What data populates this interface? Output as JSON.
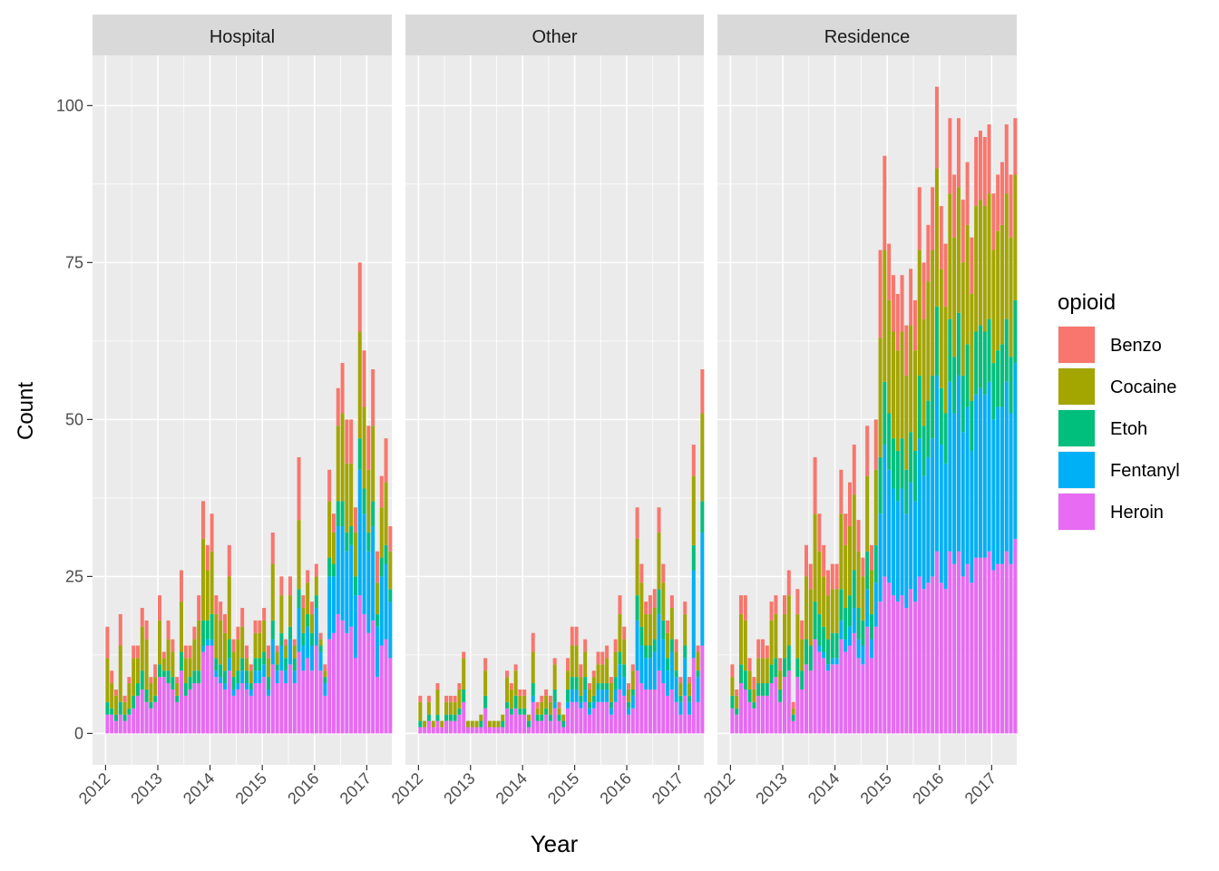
{
  "chart_data": {
    "type": "bar",
    "stacked": true,
    "faceted": true,
    "xlabel": "Year",
    "ylabel": "Count",
    "ylim": [
      -5,
      108
    ],
    "yticks": [
      0,
      25,
      50,
      75,
      100
    ],
    "xlim": [
      2011.75,
      2017.48
    ],
    "xticks": [
      2012,
      2013,
      2014,
      2015,
      2016,
      2017
    ],
    "xtick_labels": [
      "2012",
      "2013",
      "2014",
      "2015",
      "2016",
      "2017"
    ],
    "grid": true,
    "legend": {
      "title": "opioid",
      "position": "right"
    },
    "bin_start": "2012-01",
    "bin_width_months": 1,
    "series_order": [
      "Heroin",
      "Fentanyl",
      "Etoh",
      "Cocaine",
      "Benzo"
    ],
    "series": [
      {
        "name": "Benzo",
        "color": "#F8766D"
      },
      {
        "name": "Cocaine",
        "color": "#A3A500"
      },
      {
        "name": "Etoh",
        "color": "#00BF7D"
      },
      {
        "name": "Fentanyl",
        "color": "#00B0F6"
      },
      {
        "name": "Heroin",
        "color": "#E76BF3"
      }
    ],
    "panels": [
      {
        "name": "Hospital",
        "totals": [
          17,
          10,
          7,
          19,
          6,
          9,
          14,
          14,
          20,
          18,
          9,
          11,
          22,
          13,
          18,
          15,
          9,
          26,
          14,
          14,
          17,
          22,
          37,
          30,
          35,
          22,
          21,
          19,
          30,
          15,
          17,
          20,
          14,
          11,
          18,
          18,
          20,
          14,
          32,
          14,
          25,
          15,
          25,
          15,
          44,
          22,
          26,
          21,
          27,
          16,
          11,
          42,
          35,
          55,
          59,
          50,
          50,
          36,
          75,
          61,
          49,
          58,
          29,
          41,
          47,
          33
        ],
        "segments": {
          "Heroin": [
            3,
            3,
            2,
            3,
            2,
            3,
            4,
            6,
            7,
            5,
            4,
            5,
            9,
            9,
            8,
            7,
            5,
            10,
            6,
            7,
            8,
            8,
            13,
            14,
            14,
            9,
            8,
            7,
            10,
            6,
            7,
            8,
            7,
            6,
            8,
            8,
            9,
            6,
            11,
            8,
            10,
            8,
            11,
            8,
            13,
            10,
            12,
            10,
            14,
            10,
            6,
            15,
            16,
            19,
            18,
            16,
            17,
            12,
            22,
            19,
            16,
            18,
            9,
            14,
            15,
            12
          ],
          "Fentanyl": [
            0,
            0,
            0,
            0,
            0,
            0,
            0,
            0,
            0,
            0,
            0,
            0,
            0,
            0,
            0,
            0,
            0,
            0,
            0,
            0,
            0,
            0,
            1,
            1,
            1,
            1,
            1,
            1,
            2,
            1,
            1,
            2,
            1,
            1,
            2,
            2,
            2,
            1,
            4,
            2,
            4,
            2,
            4,
            2,
            7,
            4,
            5,
            4,
            6,
            3,
            2,
            10,
            9,
            14,
            15,
            13,
            13,
            10,
            20,
            16,
            13,
            15,
            8,
            11,
            12,
            9
          ],
          "Etoh": [
            2,
            1,
            1,
            2,
            1,
            1,
            2,
            2,
            3,
            2,
            1,
            1,
            2,
            1,
            2,
            2,
            1,
            3,
            2,
            2,
            2,
            2,
            4,
            3,
            4,
            2,
            2,
            2,
            3,
            2,
            2,
            2,
            2,
            1,
            2,
            2,
            2,
            2,
            3,
            1,
            2,
            2,
            2,
            2,
            3,
            2,
            2,
            2,
            2,
            1,
            1,
            3,
            2,
            4,
            4,
            3,
            3,
            3,
            5,
            4,
            3,
            4,
            2,
            3,
            3,
            2
          ],
          "Cocaine": [
            7,
            4,
            3,
            9,
            2,
            4,
            6,
            4,
            7,
            8,
            3,
            3,
            7,
            2,
            5,
            4,
            2,
            8,
            4,
            3,
            5,
            8,
            13,
            8,
            10,
            7,
            7,
            6,
            10,
            4,
            5,
            5,
            2,
            2,
            4,
            4,
            5,
            3,
            9,
            2,
            6,
            2,
            5,
            2,
            11,
            4,
            5,
            3,
            3,
            1,
            1,
            9,
            5,
            12,
            14,
            11,
            10,
            7,
            17,
            13,
            10,
            12,
            5,
            8,
            10,
            6
          ],
          "Benzo": [
            5,
            2,
            1,
            5,
            1,
            1,
            2,
            2,
            3,
            3,
            1,
            2,
            4,
            1,
            3,
            2,
            1,
            5,
            2,
            2,
            2,
            4,
            6,
            4,
            6,
            3,
            3,
            3,
            5,
            2,
            2,
            3,
            2,
            1,
            2,
            2,
            2,
            2,
            5,
            1,
            3,
            1,
            3,
            1,
            10,
            2,
            2,
            2,
            2,
            1,
            1,
            5,
            3,
            6,
            8,
            7,
            7,
            4,
            11,
            9,
            7,
            9,
            5,
            5,
            7,
            4
          ]
        }
      },
      {
        "name": "Other",
        "totals": [
          6,
          2,
          6,
          2,
          8,
          2,
          6,
          6,
          6,
          8,
          13,
          2,
          2,
          2,
          3,
          12,
          2,
          2,
          2,
          3,
          10,
          8,
          11,
          7,
          7,
          3,
          16,
          5,
          6,
          7,
          6,
          12,
          5,
          3,
          12,
          17,
          17,
          11,
          15,
          8,
          10,
          13,
          13,
          14,
          9,
          15,
          22,
          17,
          8,
          11,
          36,
          27,
          21,
          22,
          23,
          36,
          27,
          18,
          22,
          15,
          9,
          21,
          9,
          46,
          14,
          58
        ],
        "segments": {
          "Heroin": [
            1,
            1,
            2,
            1,
            2,
            1,
            2,
            2,
            2,
            3,
            5,
            1,
            1,
            1,
            1,
            4,
            1,
            1,
            1,
            1,
            4,
            3,
            4,
            3,
            3,
            1,
            5,
            2,
            2,
            3,
            2,
            4,
            2,
            1,
            4,
            5,
            5,
            4,
            5,
            3,
            4,
            5,
            5,
            5,
            3,
            5,
            7,
            6,
            3,
            4,
            10,
            8,
            7,
            7,
            7,
            10,
            8,
            6,
            7,
            5,
            3,
            6,
            3,
            12,
            5,
            14
          ],
          "Fentanyl": [
            0,
            0,
            0,
            0,
            0,
            0,
            0,
            0,
            0,
            0,
            0,
            0,
            0,
            0,
            0,
            0,
            0,
            0,
            0,
            0,
            0,
            0,
            0,
            0,
            0,
            0,
            1,
            0,
            0,
            0,
            0,
            1,
            0,
            0,
            1,
            2,
            2,
            1,
            2,
            1,
            1,
            2,
            2,
            2,
            1,
            2,
            4,
            3,
            1,
            2,
            8,
            6,
            5,
            5,
            6,
            9,
            7,
            4,
            6,
            4,
            2,
            6,
            2,
            14,
            4,
            18
          ],
          "Etoh": [
            1,
            0,
            1,
            0,
            1,
            0,
            1,
            1,
            1,
            1,
            2,
            0,
            0,
            0,
            1,
            2,
            0,
            0,
            0,
            1,
            1,
            1,
            2,
            1,
            1,
            1,
            2,
            1,
            1,
            1,
            1,
            2,
            1,
            1,
            2,
            2,
            2,
            1,
            2,
            1,
            1,
            1,
            1,
            1,
            1,
            2,
            2,
            2,
            1,
            1,
            4,
            3,
            2,
            2,
            2,
            4,
            3,
            2,
            2,
            1,
            1,
            2,
            1,
            4,
            1,
            5
          ],
          "Cocaine": [
            3,
            1,
            2,
            1,
            4,
            1,
            2,
            2,
            2,
            3,
            5,
            1,
            1,
            1,
            1,
            4,
            1,
            1,
            1,
            1,
            4,
            3,
            4,
            2,
            2,
            1,
            5,
            1,
            2,
            2,
            2,
            4,
            1,
            1,
            3,
            5,
            5,
            3,
            4,
            2,
            3,
            3,
            3,
            4,
            3,
            4,
            6,
            4,
            2,
            3,
            9,
            7,
            5,
            5,
            5,
            9,
            6,
            4,
            5,
            3,
            2,
            5,
            2,
            11,
            3,
            14
          ],
          "Benzo": [
            1,
            0,
            1,
            0,
            1,
            0,
            1,
            1,
            1,
            1,
            1,
            0,
            0,
            0,
            0,
            2,
            0,
            0,
            0,
            0,
            1,
            1,
            1,
            1,
            1,
            0,
            3,
            1,
            1,
            1,
            1,
            1,
            1,
            0,
            2,
            3,
            3,
            2,
            2,
            1,
            1,
            2,
            2,
            2,
            1,
            2,
            3,
            2,
            1,
            1,
            5,
            3,
            2,
            3,
            3,
            4,
            3,
            2,
            2,
            2,
            1,
            2,
            1,
            5,
            1,
            7
          ]
        }
      },
      {
        "name": "Residence",
        "totals": [
          11,
          7,
          22,
          22,
          12,
          9,
          15,
          15,
          14,
          21,
          22,
          12,
          22,
          26,
          5,
          23,
          18,
          30,
          27,
          44,
          35,
          30,
          26,
          27,
          27,
          42,
          35,
          40,
          46,
          34,
          28,
          49,
          30,
          50,
          77,
          92,
          78,
          73,
          70,
          73,
          65,
          74,
          69,
          87,
          75,
          81,
          87,
          103,
          84,
          78,
          98,
          89,
          98,
          85,
          91,
          79,
          95,
          96,
          95,
          97,
          86,
          89,
          91,
          97,
          89,
          98
        ],
        "segments": {
          "Heroin": [
            4,
            3,
            8,
            7,
            5,
            4,
            6,
            6,
            6,
            8,
            9,
            5,
            9,
            10,
            2,
            9,
            7,
            11,
            10,
            15,
            13,
            12,
            10,
            11,
            11,
            15,
            13,
            14,
            16,
            12,
            11,
            17,
            12,
            17,
            21,
            25,
            24,
            22,
            21,
            22,
            20,
            23,
            21,
            25,
            23,
            24,
            25,
            29,
            24,
            23,
            29,
            27,
            29,
            25,
            27,
            24,
            28,
            28,
            28,
            29,
            26,
            27,
            27,
            29,
            27,
            31
          ],
          "Fentanyl": [
            0,
            0,
            0,
            0,
            0,
            0,
            0,
            0,
            0,
            0,
            0,
            0,
            0,
            0,
            0,
            0,
            0,
            0,
            0,
            0,
            1,
            1,
            1,
            1,
            1,
            3,
            2,
            3,
            4,
            3,
            3,
            6,
            3,
            7,
            14,
            21,
            18,
            17,
            16,
            17,
            15,
            17,
            16,
            22,
            18,
            20,
            22,
            28,
            22,
            20,
            27,
            24,
            28,
            23,
            25,
            21,
            26,
            27,
            26,
            27,
            24,
            25,
            25,
            27,
            24,
            28
          ],
          "Etoh": [
            2,
            1,
            3,
            3,
            2,
            1,
            2,
            2,
            2,
            3,
            3,
            2,
            3,
            4,
            1,
            3,
            3,
            4,
            4,
            6,
            5,
            4,
            4,
            4,
            4,
            5,
            5,
            5,
            6,
            5,
            4,
            6,
            4,
            6,
            9,
            10,
            9,
            8,
            8,
            8,
            7,
            8,
            8,
            10,
            8,
            9,
            10,
            11,
            9,
            8,
            10,
            9,
            10,
            9,
            10,
            8,
            10,
            10,
            10,
            10,
            9,
            9,
            10,
            10,
            9,
            10
          ],
          "Cocaine": [
            3,
            2,
            8,
            8,
            3,
            2,
            4,
            4,
            4,
            7,
            7,
            3,
            7,
            8,
            1,
            7,
            5,
            10,
            9,
            14,
            10,
            8,
            7,
            7,
            7,
            12,
            10,
            11,
            12,
            9,
            7,
            12,
            7,
            12,
            19,
            21,
            18,
            17,
            16,
            17,
            15,
            17,
            16,
            20,
            17,
            19,
            20,
            22,
            19,
            17,
            20,
            19,
            20,
            18,
            19,
            17,
            20,
            20,
            20,
            20,
            18,
            19,
            19,
            20,
            19,
            20
          ],
          "Benzo": [
            2,
            1,
            3,
            4,
            2,
            2,
            3,
            3,
            2,
            3,
            3,
            2,
            3,
            4,
            1,
            4,
            3,
            5,
            4,
            9,
            6,
            5,
            4,
            4,
            4,
            7,
            5,
            7,
            8,
            5,
            3,
            8,
            4,
            8,
            14,
            15,
            9,
            9,
            9,
            9,
            8,
            9,
            8,
            10,
            9,
            9,
            10,
            13,
            10,
            10,
            12,
            10,
            11,
            10,
            10,
            9,
            11,
            11,
            11,
            11,
            9,
            9,
            10,
            11,
            10,
            9
          ]
        }
      }
    ]
  }
}
